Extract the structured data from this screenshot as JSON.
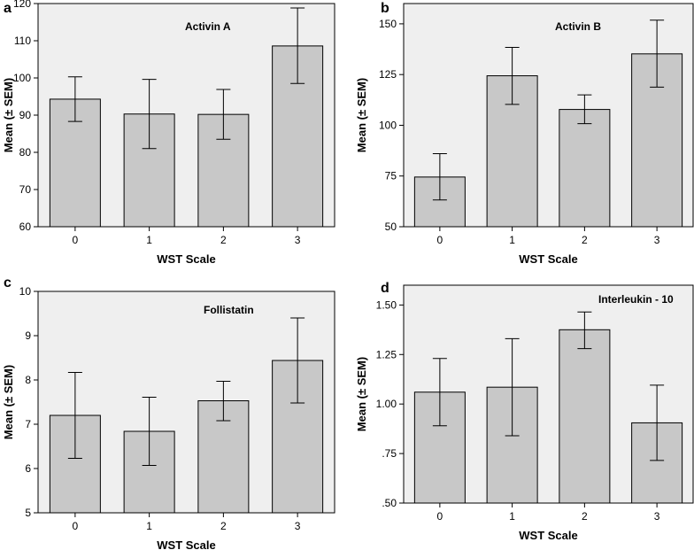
{
  "chart_data": [
    {
      "panel_label": "a",
      "type": "bar",
      "title": "Activin A",
      "xlabel": "WST Scale",
      "ylabel": "Mean (± SEM)",
      "categories": [
        "0",
        "1",
        "2",
        "3"
      ],
      "values": [
        94.3,
        90.3,
        90.2,
        108.6
      ],
      "err_low": [
        88.3,
        81.0,
        83.5,
        98.5
      ],
      "err_high": [
        100.3,
        99.6,
        96.9,
        118.8
      ],
      "ylim": [
        60,
        120
      ],
      "yticks": [
        60,
        70,
        80,
        90,
        100,
        110,
        120
      ],
      "ytick_labels": [
        "60",
        "70",
        "80",
        "90",
        "100",
        "110",
        "120"
      ]
    },
    {
      "panel_label": "b",
      "type": "bar",
      "title": "Activin B",
      "xlabel": "WST Scale",
      "ylabel": "Mean (± SEM)",
      "categories": [
        "0",
        "1",
        "2",
        "3"
      ],
      "values": [
        74.5,
        124.4,
        107.8,
        135.2
      ],
      "err_low": [
        63.2,
        110.3,
        100.8,
        118.8
      ],
      "err_high": [
        86.0,
        138.4,
        115.0,
        151.8
      ],
      "ylim": [
        50,
        160
      ],
      "yticks": [
        50,
        75,
        100,
        125,
        150
      ],
      "ytick_labels": [
        "50",
        "75",
        "100",
        "125",
        "150"
      ]
    },
    {
      "panel_label": "c",
      "type": "bar",
      "title": "Follistatin",
      "xlabel": "WST Scale",
      "ylabel": "Mean (± SEM)",
      "categories": [
        "0",
        "1",
        "2",
        "3"
      ],
      "values": [
        7.2,
        6.84,
        7.53,
        8.44
      ],
      "err_low": [
        6.23,
        6.07,
        7.08,
        7.48
      ],
      "err_high": [
        8.17,
        7.61,
        7.97,
        9.4
      ],
      "ylim": [
        5,
        10
      ],
      "yticks": [
        5,
        6,
        7,
        8,
        9,
        10
      ],
      "ytick_labels": [
        "5",
        "6",
        "7",
        "8",
        "9",
        "10"
      ]
    },
    {
      "panel_label": "d",
      "type": "bar",
      "title": "Interleukin - 10",
      "xlabel": "WST Scale",
      "ylabel": "Mean (± SEM)",
      "categories": [
        "0",
        "1",
        "2",
        "3"
      ],
      "values": [
        1.06,
        1.085,
        1.375,
        0.905
      ],
      "err_low": [
        0.89,
        0.84,
        1.28,
        0.715
      ],
      "err_high": [
        1.23,
        1.33,
        1.465,
        1.095
      ],
      "ylim": [
        0.5,
        1.6
      ],
      "yticks": [
        0.5,
        0.75,
        1.0,
        1.25,
        1.5
      ],
      "ytick_labels": [
        ".50",
        ".75",
        "1.00",
        "1.25",
        "1.50"
      ]
    }
  ]
}
